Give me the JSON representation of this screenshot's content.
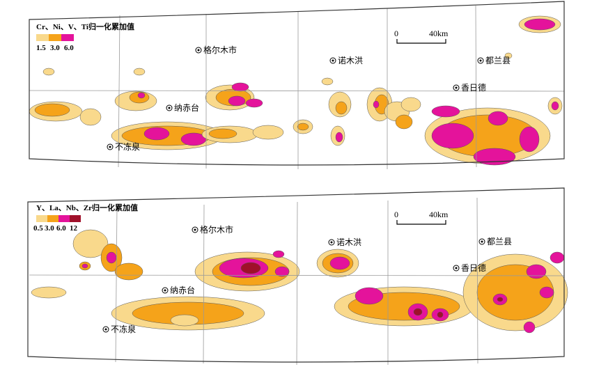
{
  "maps": [
    {
      "legend": {
        "title": "Cr、Ni、V、Ti归一化累加值",
        "labels": [
          "1.5",
          "3.0",
          "6.0"
        ]
      },
      "scale": {
        "labels": [
          "0",
          "40km"
        ]
      },
      "places": [
        "格尔木市",
        "纳赤台",
        "诺木洪",
        "都兰县",
        "香日德",
        "不冻泉"
      ]
    },
    {
      "legend": {
        "title": "Y、La、Nb、Zr归一化累加值",
        "labels": [
          "0.5",
          "3.0",
          "6.0",
          "12"
        ]
      },
      "scale": {
        "labels": [
          "0",
          "40km"
        ]
      },
      "places": [
        "格尔木市",
        "诺木洪",
        "都兰县",
        "香日德",
        "纳赤台",
        "不冻泉"
      ]
    }
  ]
}
